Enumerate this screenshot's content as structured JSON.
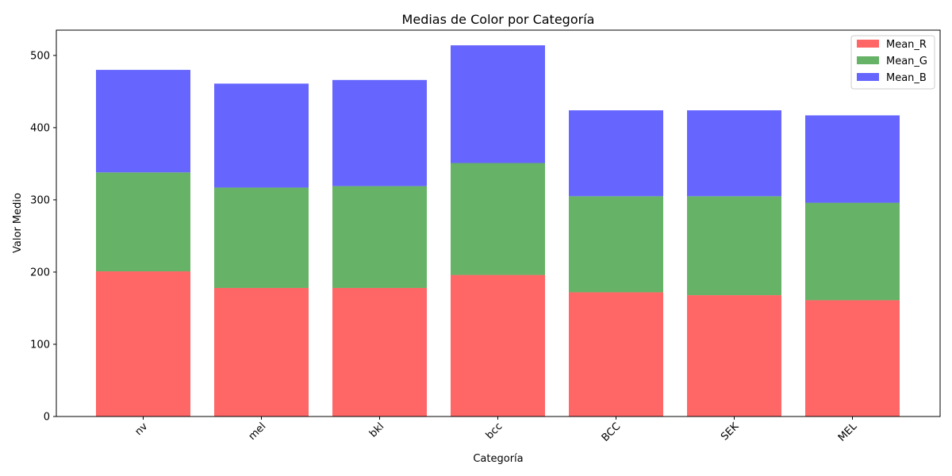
{
  "chart_data": {
    "type": "bar",
    "stacked": true,
    "title": "Medias de Color por Categoría",
    "xlabel": "Categoría",
    "ylabel": "Valor Medio",
    "categories": [
      "nv",
      "mel",
      "bkl",
      "bcc",
      "BCC",
      "SEK",
      "MEL"
    ],
    "series": [
      {
        "name": "Mean_R",
        "color": "#ff6666",
        "values": [
          201,
          178,
          178,
          196,
          172,
          168,
          161
        ]
      },
      {
        "name": "Mean_G",
        "color": "#66b266",
        "values": [
          137,
          139,
          141,
          155,
          133,
          137,
          135
        ]
      },
      {
        "name": "Mean_B",
        "color": "#6666ff",
        "values": [
          142,
          144,
          147,
          163,
          119,
          119,
          121
        ]
      }
    ],
    "ylim": [
      0,
      535
    ],
    "yticks": [
      0,
      100,
      200,
      300,
      400,
      500
    ],
    "xtick_rotation": 45,
    "grid": false,
    "legend_position": "top-right"
  }
}
